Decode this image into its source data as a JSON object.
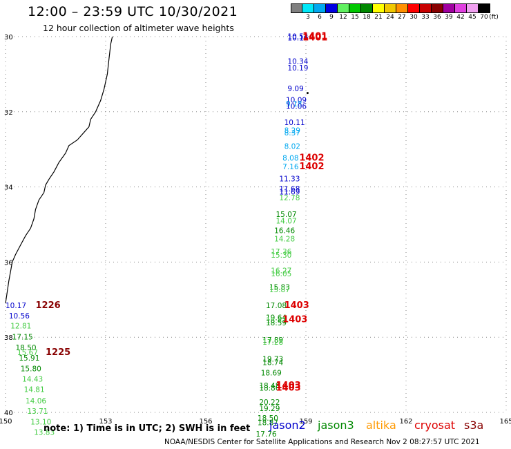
{
  "header": {
    "title": "12:00 – 23:59 UTC 10/30/2021",
    "subtitle": "12 hour collection of altimeter wave heights"
  },
  "scale": {
    "unit_label": "(ft)",
    "items": [
      {
        "label": "",
        "color": "#808080"
      },
      {
        "label": "3",
        "color": "#00e8f8"
      },
      {
        "label": "6",
        "color": "#00a8f0"
      },
      {
        "label": "9",
        "color": "#0000e0"
      },
      {
        "label": "12",
        "color": "#60f060"
      },
      {
        "label": "15",
        "color": "#00c800"
      },
      {
        "label": "18",
        "color": "#008800"
      },
      {
        "label": "21",
        "color": "#ffff00"
      },
      {
        "label": "24",
        "color": "#f0c800"
      },
      {
        "label": "27",
        "color": "#ff9000"
      },
      {
        "label": "30",
        "color": "#ff0000"
      },
      {
        "label": "33",
        "color": "#c80000"
      },
      {
        "label": "36",
        "color": "#880000"
      },
      {
        "label": "39",
        "color": "#a000a0"
      },
      {
        "label": "42",
        "color": "#e040e0"
      },
      {
        "label": "45",
        "color": "#f0a0f0"
      },
      {
        "label": "70",
        "color": "#000000"
      }
    ]
  },
  "map": {
    "lon_range": [
      150,
      165
    ],
    "lat_range": [
      -40,
      -30
    ],
    "lon_ticks": [
      "150",
      "153",
      "156",
      "159",
      "162",
      "165"
    ],
    "lat_ticks": [
      "30",
      "32",
      "34",
      "36",
      "38",
      "40"
    ],
    "grid": "dotted",
    "colors": {
      "jason2": "#0000cc",
      "jason3": "#008800",
      "jason3_light": "#44cc44",
      "cryosat": "#dd0000",
      "s3a": "#880000",
      "cyan": "#00a8f0"
    },
    "observations": [
      {
        "text": "10.54",
        "lon": 158.45,
        "lat": -30.06,
        "color": "#0000cc"
      },
      {
        "text": "10.16",
        "lon": 158.45,
        "lat": -30.1,
        "color": "#0000cc"
      },
      {
        "text": "10.34",
        "lon": 158.45,
        "lat": -30.73,
        "color": "#0000cc"
      },
      {
        "text": "10.19",
        "lon": 158.45,
        "lat": -30.9,
        "color": "#0000cc"
      },
      {
        "text": "9.09",
        "lon": 158.45,
        "lat": -31.45,
        "color": "#0000cc"
      },
      {
        "text": "10.09",
        "lon": 158.4,
        "lat": -31.76,
        "color": "#0000cc"
      },
      {
        "text": "9.18",
        "lon": 158.4,
        "lat": -31.86,
        "color": "#00a8f0"
      },
      {
        "text": "10.06",
        "lon": 158.4,
        "lat": -31.92,
        "color": "#0000cc"
      },
      {
        "text": "10.11",
        "lon": 158.35,
        "lat": -32.35,
        "color": "#0000cc"
      },
      {
        "text": "8.29",
        "lon": 158.35,
        "lat": -32.56,
        "color": "#00a8f0"
      },
      {
        "text": "8.37",
        "lon": 158.35,
        "lat": -32.63,
        "color": "#00a8f0"
      },
      {
        "text": "8.02",
        "lon": 158.35,
        "lat": -32.99,
        "color": "#00a8f0"
      },
      {
        "text": "8.08",
        "lon": 158.3,
        "lat": -33.3,
        "color": "#00a8f0"
      },
      {
        "text": "7.16",
        "lon": 158.3,
        "lat": -33.53,
        "color": "#00a8f0"
      },
      {
        "text": "11.33",
        "lon": 158.2,
        "lat": -33.85,
        "color": "#0000cc"
      },
      {
        "text": "11.68",
        "lon": 158.2,
        "lat": -34.12,
        "color": "#0000cc"
      },
      {
        "text": "11.69",
        "lon": 158.2,
        "lat": -34.2,
        "color": "#0000cc"
      },
      {
        "text": "12.78",
        "lon": 158.2,
        "lat": -34.36,
        "color": "#44cc44"
      },
      {
        "text": "15.07",
        "lon": 158.1,
        "lat": -34.8,
        "color": "#008800"
      },
      {
        "text": "14.07",
        "lon": 158.1,
        "lat": -34.97,
        "color": "#44cc44"
      },
      {
        "text": "16.46",
        "lon": 158.05,
        "lat": -35.23,
        "color": "#008800"
      },
      {
        "text": "14.28",
        "lon": 158.05,
        "lat": -35.45,
        "color": "#44cc44"
      },
      {
        "text": "17.36",
        "lon": 157.95,
        "lat": -35.79,
        "color": "#44cc44"
      },
      {
        "text": "15.30",
        "lon": 157.95,
        "lat": -35.88,
        "color": "#44cc44"
      },
      {
        "text": "16.27",
        "lon": 157.95,
        "lat": -36.3,
        "color": "#44cc44"
      },
      {
        "text": "16.05",
        "lon": 157.95,
        "lat": -36.38,
        "color": "#44cc44"
      },
      {
        "text": "15.83",
        "lon": 157.9,
        "lat": -36.74,
        "color": "#008800"
      },
      {
        "text": "15.87",
        "lon": 157.9,
        "lat": -36.8,
        "color": "#44cc44"
      },
      {
        "text": "17.08",
        "lon": 157.8,
        "lat": -37.22,
        "color": "#008800"
      },
      {
        "text": "19.64",
        "lon": 157.8,
        "lat": -37.55,
        "color": "#008800"
      },
      {
        "text": "18.41",
        "lon": 157.8,
        "lat": -37.62,
        "color": "#44cc44"
      },
      {
        "text": "18.59",
        "lon": 157.8,
        "lat": -37.68,
        "color": "#008800"
      },
      {
        "text": "17.89",
        "lon": 157.7,
        "lat": -38.14,
        "color": "#008800"
      },
      {
        "text": "17.28",
        "lon": 157.7,
        "lat": -38.2,
        "color": "#44cc44"
      },
      {
        "text": "19.73",
        "lon": 157.7,
        "lat": -38.65,
        "color": "#008800"
      },
      {
        "text": "18.74",
        "lon": 157.7,
        "lat": -38.74,
        "color": "#008800"
      },
      {
        "text": "18.69",
        "lon": 157.65,
        "lat": -39.02,
        "color": "#008800"
      },
      {
        "text": "18.48",
        "lon": 157.6,
        "lat": -39.36,
        "color": "#008800"
      },
      {
        "text": "18.86",
        "lon": 157.6,
        "lat": -39.42,
        "color": "#008800"
      },
      {
        "text": "20.22",
        "lon": 157.6,
        "lat": -39.8,
        "color": "#008800"
      },
      {
        "text": "19.29",
        "lon": 157.6,
        "lat": -39.96,
        "color": "#008800"
      },
      {
        "text": "18.50",
        "lon": 157.55,
        "lat": -40.22,
        "color": "#008800"
      },
      {
        "text": "18.87",
        "lon": 157.55,
        "lat": -40.34,
        "color": "#008800"
      },
      {
        "text": "17.76",
        "lon": 157.5,
        "lat": -40.64,
        "color": "#008800"
      },
      {
        "text": "10.17",
        "lon": 150.0,
        "lat": -37.22,
        "color": "#0000cc"
      },
      {
        "text": "10.56",
        "lon": 150.1,
        "lat": -37.5,
        "color": "#0000cc"
      },
      {
        "text": "12.81",
        "lon": 150.15,
        "lat": -37.77,
        "color": "#44cc44"
      },
      {
        "text": "17.15",
        "lon": 150.2,
        "lat": -38.06,
        "color": "#008800"
      },
      {
        "text": "18.50",
        "lon": 150.3,
        "lat": -38.35,
        "color": "#008800"
      },
      {
        "text": "15.67",
        "lon": 150.35,
        "lat": -38.47,
        "color": "#44cc44"
      },
      {
        "text": "15.91",
        "lon": 150.4,
        "lat": -38.62,
        "color": "#008800"
      },
      {
        "text": "15.80",
        "lon": 150.45,
        "lat": -38.91,
        "color": "#008800"
      },
      {
        "text": "14.43",
        "lon": 150.5,
        "lat": -39.18,
        "color": "#44cc44"
      },
      {
        "text": "14.81",
        "lon": 150.55,
        "lat": -39.46,
        "color": "#44cc44"
      },
      {
        "text": "14.06",
        "lon": 150.6,
        "lat": -39.76,
        "color": "#44cc44"
      },
      {
        "text": "13.71",
        "lon": 150.65,
        "lat": -40.04,
        "color": "#44cc44"
      },
      {
        "text": "13.10",
        "lon": 150.75,
        "lat": -40.32,
        "color": "#44cc44"
      },
      {
        "text": "13.83",
        "lon": 150.85,
        "lat": -40.6,
        "color": "#44cc44"
      }
    ],
    "pass_times": [
      {
        "text": "1401",
        "lon": 158.9,
        "lat": -30.06,
        "color": "#dd0000"
      },
      {
        "text": "1401",
        "lon": 158.9,
        "lat": -30.1,
        "color": "#dd0000"
      },
      {
        "text": "1402",
        "lon": 158.8,
        "lat": -33.3,
        "color": "#dd0000"
      },
      {
        "text": "1402",
        "lon": 158.8,
        "lat": -33.53,
        "color": "#dd0000"
      },
      {
        "text": "1403",
        "lon": 158.35,
        "lat": -37.22,
        "color": "#dd0000"
      },
      {
        "text": "1403",
        "lon": 158.3,
        "lat": -37.6,
        "color": "#dd0000"
      },
      {
        "text": "1403",
        "lon": 158.1,
        "lat": -39.36,
        "color": "#dd0000"
      },
      {
        "text": "1403",
        "lon": 158.1,
        "lat": -39.42,
        "color": "#dd0000"
      },
      {
        "text": "1226",
        "lon": 150.9,
        "lat": -37.22,
        "color": "#880000"
      },
      {
        "text": "1225",
        "lon": 151.2,
        "lat": -38.47,
        "color": "#880000"
      }
    ],
    "coastline": [
      [
        153.2,
        -30.0
      ],
      [
        153.15,
        -30.2
      ],
      [
        153.1,
        -30.6
      ],
      [
        153.05,
        -31.0
      ],
      [
        152.95,
        -31.4
      ],
      [
        152.85,
        -31.7
      ],
      [
        152.7,
        -32.0
      ],
      [
        152.55,
        -32.2
      ],
      [
        152.5,
        -32.4
      ],
      [
        152.35,
        -32.55
      ],
      [
        152.15,
        -32.75
      ],
      [
        151.9,
        -32.9
      ],
      [
        151.8,
        -33.1
      ],
      [
        151.6,
        -33.35
      ],
      [
        151.45,
        -33.6
      ],
      [
        151.3,
        -33.8
      ],
      [
        151.2,
        -33.95
      ],
      [
        151.15,
        -34.15
      ],
      [
        151.0,
        -34.35
      ],
      [
        150.9,
        -34.6
      ],
      [
        150.85,
        -34.85
      ],
      [
        150.75,
        -35.1
      ],
      [
        150.6,
        -35.3
      ],
      [
        150.45,
        -35.55
      ],
      [
        150.3,
        -35.8
      ],
      [
        150.2,
        -36.0
      ],
      [
        150.15,
        -36.25
      ],
      [
        150.1,
        -36.5
      ],
      [
        150.05,
        -36.8
      ],
      [
        150.0,
        -37.1
      ]
    ],
    "islands": [
      [
        159.05,
        -31.5
      ]
    ]
  },
  "footer": {
    "note": "note:  1) Time is in UTC;  2) SWH is in feet",
    "legend": [
      {
        "label": "jason2",
        "color": "#0000cc"
      },
      {
        "label": "jason3",
        "color": "#008800"
      },
      {
        "label": "altika",
        "color": "#ff9900"
      },
      {
        "label": "cryosat",
        "color": "#dd0000"
      },
      {
        "label": "s3a",
        "color": "#880000"
      }
    ],
    "credit": "NOAA/NESDIS Center for Satellite Applications and Research    Nov  2 08:27:57 UTC 2021"
  }
}
